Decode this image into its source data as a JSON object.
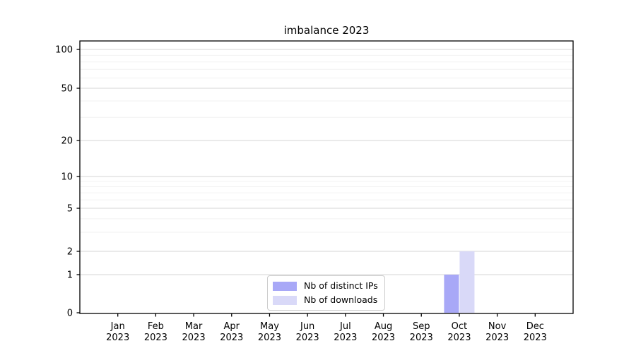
{
  "figure": {
    "background": "#ffffff"
  },
  "chart_data": {
    "type": "bar",
    "title": "imbalance 2023",
    "categories": [
      "Jan 2023",
      "Feb 2023",
      "Mar 2023",
      "Apr 2023",
      "May 2023",
      "Jun 2023",
      "Jul 2023",
      "Aug 2023",
      "Sep 2023",
      "Oct 2023",
      "Nov 2023",
      "Dec 2023"
    ],
    "series": [
      {
        "name": "Nb of distinct IPs",
        "color": "#a8a8f7",
        "values": [
          0,
          0,
          0,
          0,
          0,
          0,
          0,
          0,
          0,
          1,
          0,
          0
        ]
      },
      {
        "name": "Nb of downloads",
        "color": "#d9d9f8",
        "values": [
          0,
          0,
          0,
          0,
          0,
          0,
          0,
          0,
          0,
          2,
          0,
          0
        ]
      }
    ],
    "xlabel": "",
    "ylabel": "",
    "yscale": "symlog",
    "yticks": [
      0,
      1,
      2,
      5,
      10,
      20,
      50,
      100
    ],
    "ylim": [
      0,
      112
    ],
    "grid": true,
    "legend_position": "lower center",
    "colors": {
      "axis": "#000000",
      "major_grid": "#d4d4d4",
      "minor_grid": "#f2f2f2",
      "text": "#000000"
    }
  }
}
